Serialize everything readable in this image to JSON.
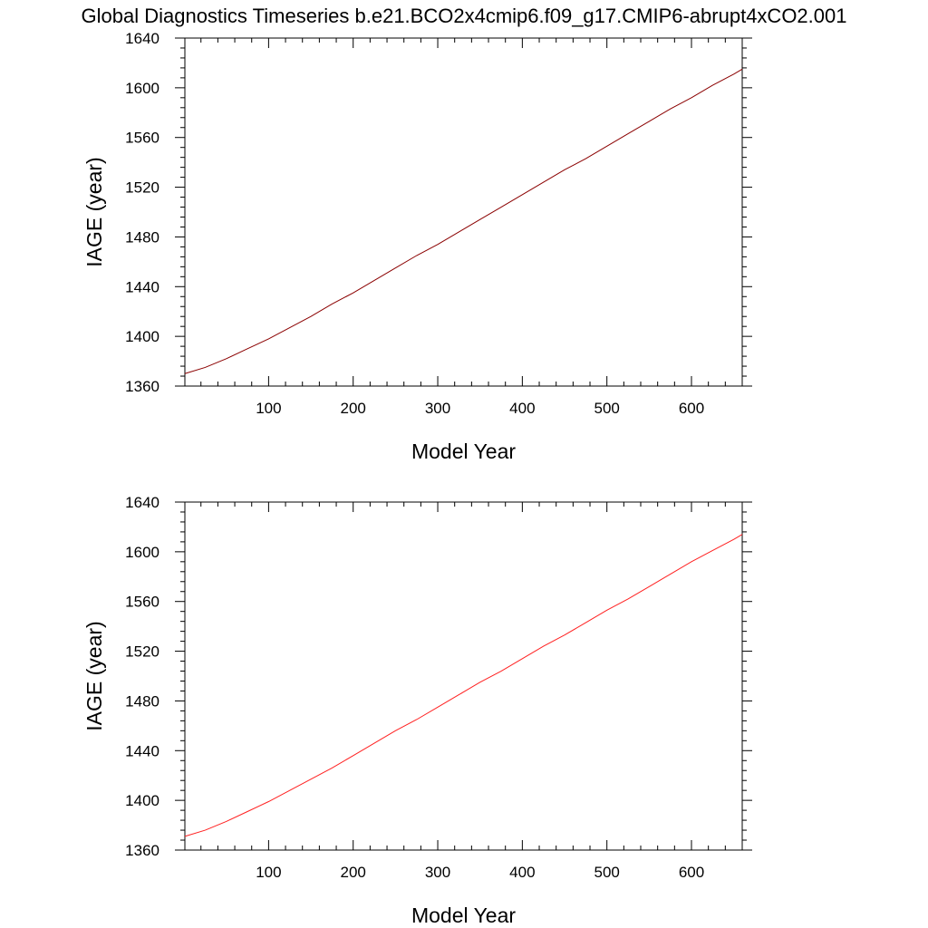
{
  "title": "Global Diagnostics Timeseries b.e21.BCO2x4cmip6.f09_g17.CMIP6-abrupt4xCO2.001",
  "chart_data": [
    {
      "type": "line",
      "xlabel": "Model Year",
      "ylabel": "IAGE (year)",
      "xlim": [
        1,
        660
      ],
      "ylim": [
        1360,
        1640
      ],
      "x_ticks": [
        100,
        200,
        300,
        400,
        500,
        600
      ],
      "y_ticks": [
        1360,
        1400,
        1440,
        1480,
        1520,
        1560,
        1600,
        1640
      ],
      "grid": false,
      "series": [
        {
          "color": "#8b0000",
          "x": [
            1,
            25,
            50,
            75,
            100,
            125,
            150,
            175,
            200,
            225,
            250,
            275,
            300,
            325,
            350,
            375,
            400,
            425,
            450,
            475,
            500,
            525,
            550,
            575,
            600,
            625,
            650,
            660
          ],
          "y": [
            1370,
            1375,
            1382,
            1390,
            1398,
            1407,
            1416,
            1426,
            1435,
            1445,
            1455,
            1465,
            1474,
            1484,
            1494,
            1504,
            1514,
            1524,
            1534,
            1543,
            1553,
            1563,
            1573,
            1583,
            1592,
            1602,
            1611,
            1615
          ]
        }
      ]
    },
    {
      "type": "line",
      "xlabel": "Model Year",
      "ylabel": "IAGE (year)",
      "xlim": [
        1,
        660
      ],
      "ylim": [
        1360,
        1640
      ],
      "x_ticks": [
        100,
        200,
        300,
        400,
        500,
        600
      ],
      "y_ticks": [
        1360,
        1400,
        1440,
        1480,
        1520,
        1560,
        1600,
        1640
      ],
      "grid": false,
      "series": [
        {
          "color": "#ff2020",
          "x": [
            1,
            25,
            50,
            75,
            100,
            125,
            150,
            175,
            200,
            225,
            250,
            275,
            300,
            325,
            350,
            375,
            400,
            425,
            450,
            475,
            500,
            525,
            550,
            575,
            600,
            625,
            650,
            660
          ],
          "y": [
            1371,
            1376,
            1383,
            1391,
            1399,
            1408,
            1417,
            1426,
            1436,
            1446,
            1456,
            1465,
            1475,
            1485,
            1495,
            1504,
            1514,
            1524,
            1533,
            1543,
            1553,
            1562,
            1572,
            1582,
            1592,
            1601,
            1610,
            1614
          ]
        }
      ]
    }
  ]
}
